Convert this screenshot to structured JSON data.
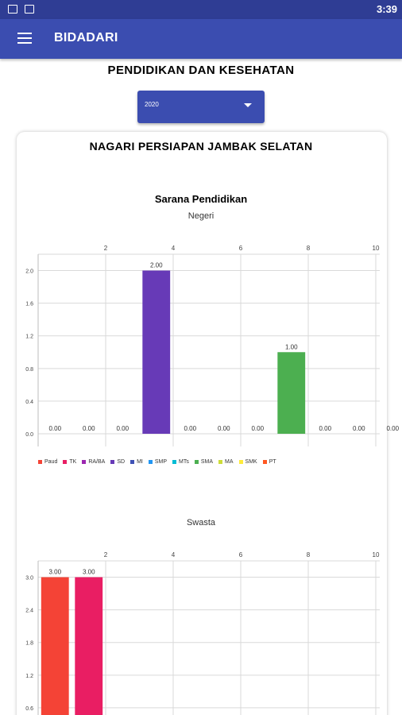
{
  "statusbar": {
    "time": "3:39",
    "icons": [
      "image-icon",
      "notification-app-icon"
    ]
  },
  "appbar": {
    "title": "BIDADARI",
    "menu_icon": "menu-icon"
  },
  "page": {
    "title": "PENDIDIKAN DAN KESEHATAN"
  },
  "year_select": {
    "value": "2020",
    "icon": "dropdown-caret-icon"
  },
  "card": {
    "title": "NAGARI PERSIAPAN JAMBAK SELATAN"
  },
  "chart_section": {
    "title": "Sarana Pendidikan"
  },
  "legend": [
    {
      "label": "Paud",
      "color": "#F44336"
    },
    {
      "label": "TK",
      "color": "#E91E63"
    },
    {
      "label": "RA/BA",
      "color": "#9C27B0"
    },
    {
      "label": "SD",
      "color": "#673AB7"
    },
    {
      "label": "MI",
      "color": "#3F51B5"
    },
    {
      "label": "SMP",
      "color": "#2196F3"
    },
    {
      "label": "MTs",
      "color": "#00BCD4"
    },
    {
      "label": "SMA",
      "color": "#4CAF50"
    },
    {
      "label": "MA",
      "color": "#CDDC39"
    },
    {
      "label": "SMK",
      "color": "#FFEB3B"
    },
    {
      "label": "PT",
      "color": "#FF5722"
    }
  ],
  "chart_data": [
    {
      "type": "bar",
      "title": "Negeri",
      "categories": [
        "Paud",
        "TK",
        "RA/BA",
        "SD",
        "MI",
        "SMP",
        "MTs",
        "SMA",
        "MA",
        "SMK",
        "PT"
      ],
      "values": [
        0,
        0,
        0,
        2,
        0,
        0,
        0,
        1,
        0,
        0,
        0
      ],
      "value_labels": [
        "0.00",
        "0.00",
        "0.00",
        "2.00",
        "0.00",
        "0.00",
        "0.00",
        "1.00",
        "0.00",
        "0.00",
        "0.00"
      ],
      "colors": [
        "#F44336",
        "#E91E63",
        "#9C27B0",
        "#673AB7",
        "#3F51B5",
        "#2196F3",
        "#00BCD4",
        "#4CAF50",
        "#CDDC39",
        "#FFEB3B",
        "#FF5722"
      ],
      "x_ticks": [
        "2",
        "4",
        "6",
        "8",
        "10"
      ],
      "y_ticks": [
        "0.0",
        "0.4",
        "0.8",
        "1.2",
        "1.6",
        "2.0"
      ],
      "ylim": [
        0,
        2.2
      ],
      "grid": true,
      "x_axis_position": "top"
    },
    {
      "type": "bar",
      "title": "Swasta",
      "categories": [
        "Paud",
        "TK"
      ],
      "values": [
        3,
        3
      ],
      "value_labels": [
        "3.00",
        "3.00"
      ],
      "colors": [
        "#F44336",
        "#E91E63"
      ],
      "x_ticks": [
        "2",
        "4",
        "6",
        "8",
        "10"
      ],
      "y_ticks": [
        "0.6",
        "1.2",
        "1.8",
        "2.4",
        "3.0"
      ],
      "ylim": [
        0,
        3.3
      ],
      "grid": true,
      "x_axis_position": "top"
    }
  ]
}
